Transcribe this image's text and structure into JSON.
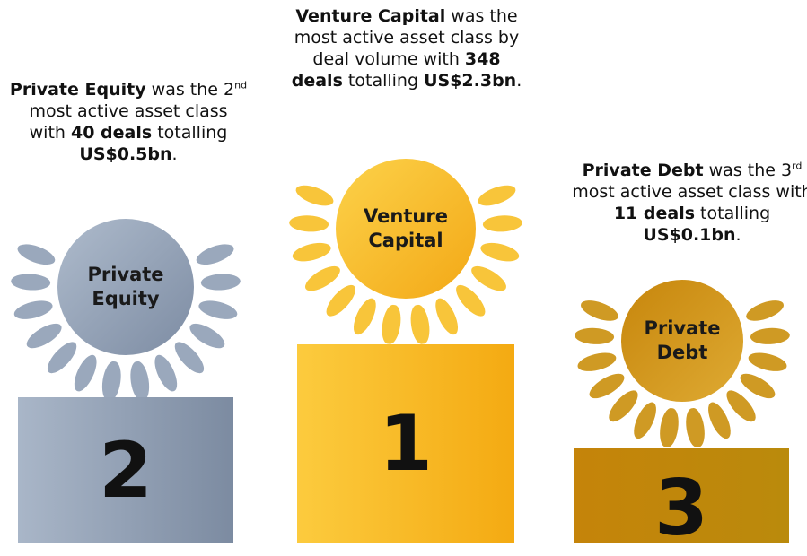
{
  "podiums": [
    {
      "caption": [
        {
          "text": "Private Equity",
          "bold": true
        },
        {
          "text": " was the "
        },
        {
          "text": "2"
        },
        {
          "text": "nd",
          "sup": true
        },
        {
          "text": " most active asset class with "
        },
        {
          "text": "40 deals",
          "bold": true
        },
        {
          "text": " totalling "
        },
        {
          "text": "US$0.5bn",
          "bold": true
        },
        {
          "text": "."
        }
      ],
      "medal": "Private Equity",
      "rank": 2
    },
    {
      "caption": [
        {
          "text": "Venture Capital",
          "bold": true
        },
        {
          "text": " was the most active asset class by deal volume with "
        },
        {
          "text": "348 deals",
          "bold": true
        },
        {
          "text": " totalling "
        },
        {
          "text": "US$2.3bn",
          "bold": true
        },
        {
          "text": "."
        }
      ],
      "medal": "Venture Capital",
      "rank": 1
    },
    {
      "caption": [
        {
          "text": "Private Debt",
          "bold": true
        },
        {
          "text": " was the "
        },
        {
          "text": "3"
        },
        {
          "text": "rd",
          "sup": true
        },
        {
          "text": " most active asset class with "
        },
        {
          "text": "11 deals",
          "bold": true
        },
        {
          "text": " totalling "
        },
        {
          "text": "US$0.1bn",
          "bold": true
        },
        {
          "text": "."
        }
      ],
      "medal": "Private Debt",
      "rank": 3
    }
  ]
}
